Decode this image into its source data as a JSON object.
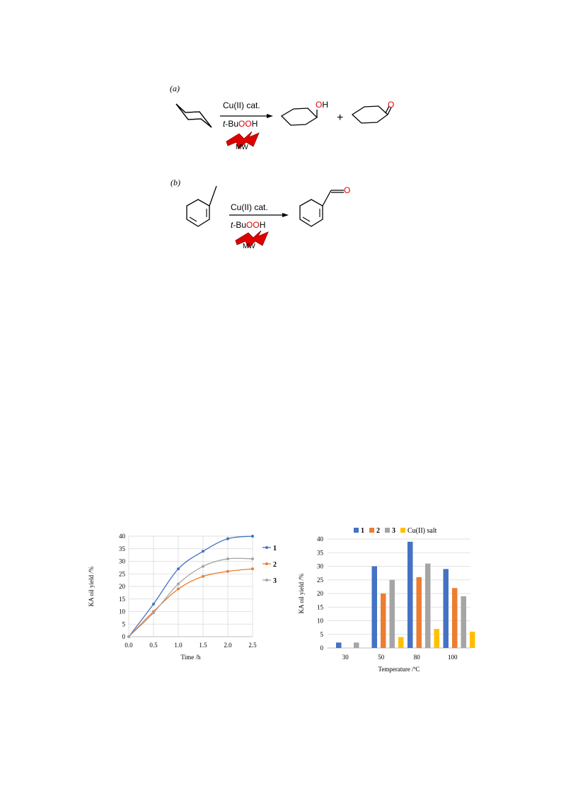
{
  "scheme_a": {
    "label": "(a)",
    "catalyst": "Cu(II) cat.",
    "oxidant_prefix": "t",
    "oxidant_main": "-Bu",
    "oxidant_o1": "O",
    "oxidant_o2": "O",
    "oxidant_h": "H",
    "energy": "MW",
    "product1_o": "O",
    "product1_h": "H",
    "plus": "+",
    "product2_o": "O"
  },
  "scheme_b": {
    "label": "(b)",
    "catalyst": "Cu(II) cat.",
    "oxidant_prefix": "t",
    "oxidant_main": "-Bu",
    "oxidant_o1": "O",
    "oxidant_o2": "O",
    "oxidant_h": "H",
    "energy": "MW",
    "product_o": "O"
  },
  "colors": {
    "series1": "#4472c4",
    "series2": "#ed7d31",
    "series3": "#a5a5a5",
    "series4": "#ffc000",
    "reagent_red": "#e00000",
    "bolt_red": "#e00000"
  },
  "chart_data": [
    {
      "type": "line",
      "xlabel": "Time /h",
      "ylabel": "KA oil yield /%",
      "xlim": [
        0,
        2.5
      ],
      "ylim": [
        0,
        40
      ],
      "x_ticks": [
        "0.0",
        "0.5",
        "1.0",
        "1.5",
        "2.0",
        "2.5"
      ],
      "y_ticks": [
        "0",
        "5",
        "10",
        "15",
        "20",
        "25",
        "30",
        "35",
        "40"
      ],
      "grid": true,
      "legend": "right",
      "x": [
        0,
        0.5,
        1.0,
        1.5,
        2.0,
        2.5
      ],
      "series": [
        {
          "name": "1",
          "values": [
            0,
            13,
            27,
            34,
            39,
            40
          ]
        },
        {
          "name": "2",
          "values": [
            0,
            10,
            19,
            24,
            26,
            27
          ]
        },
        {
          "name": "3",
          "values": [
            0,
            9.5,
            21,
            28,
            31,
            31
          ]
        }
      ]
    },
    {
      "type": "bar",
      "xlabel": "Temperature /ºC",
      "ylabel": "KA oil yield /%",
      "ylim": [
        0,
        40
      ],
      "y_ticks": [
        "0",
        "5",
        "10",
        "15",
        "20",
        "25",
        "30",
        "35",
        "40"
      ],
      "grid": true,
      "legend": "top",
      "categories": [
        "30",
        "50",
        "80",
        "100"
      ],
      "series": [
        {
          "name": "1",
          "values": [
            2,
            30,
            39,
            29
          ]
        },
        {
          "name": "2",
          "values": [
            0,
            20,
            26,
            22
          ]
        },
        {
          "name": "3",
          "values": [
            2,
            25,
            31,
            19
          ]
        },
        {
          "name": "Cu(II) salt",
          "values": [
            0,
            4,
            7,
            6
          ]
        }
      ]
    }
  ]
}
